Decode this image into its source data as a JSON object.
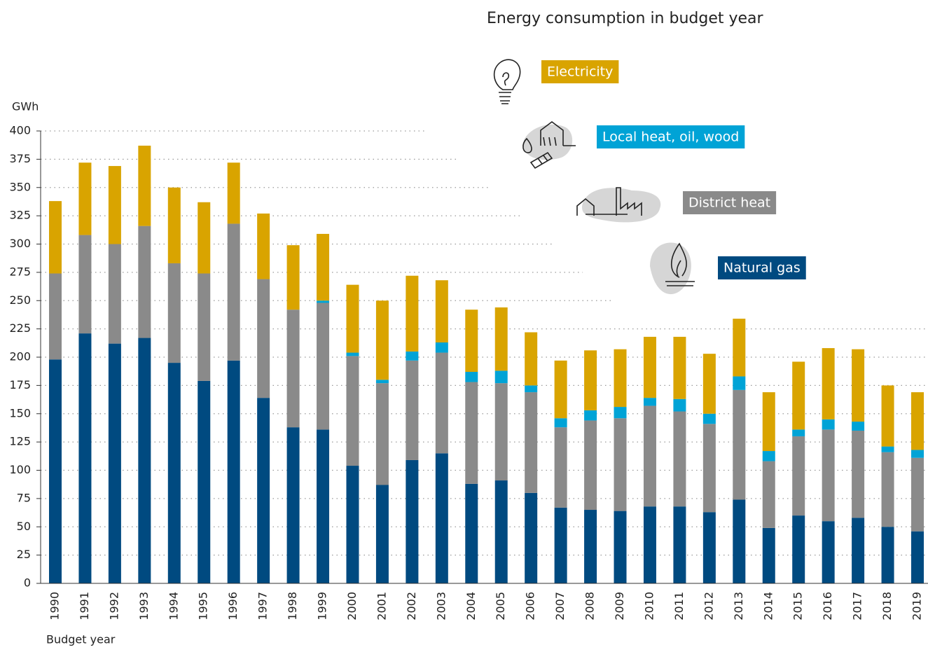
{
  "chart_data": {
    "type": "stacked_bar",
    "title": "Energy consumption in budget year",
    "y_label": "GWh",
    "x_label": "Budget year",
    "categories": [
      "1990",
      "1991",
      "1992",
      "1993",
      "1994",
      "1995",
      "1996",
      "1997",
      "1998",
      "1999",
      "2000",
      "2001",
      "2002",
      "2003",
      "2004",
      "2005",
      "2006",
      "2007",
      "2008",
      "2009",
      "2010",
      "2011",
      "2012",
      "2013",
      "2014",
      "2015",
      "2016",
      "2017",
      "2018",
      "2019"
    ],
    "series": [
      {
        "name": "Natural gas",
        "color": "#004a80",
        "values": [
          198,
          221,
          212,
          217,
          195,
          179,
          197,
          164,
          138,
          136,
          104,
          87,
          109,
          115,
          88,
          91,
          80,
          67,
          65,
          64,
          68,
          68,
          63,
          74,
          49,
          60,
          55,
          58,
          50,
          46
        ]
      },
      {
        "name": "District heat",
        "color": "#8a8a8a",
        "values": [
          76,
          87,
          88,
          99,
          88,
          95,
          121,
          105,
          104,
          112,
          97,
          90,
          88,
          89,
          90,
          86,
          89,
          71,
          79,
          82,
          89,
          84,
          78,
          97,
          59,
          70,
          81,
          77,
          66,
          65
        ]
      },
      {
        "name": "Local heat, oil, wood",
        "color": "#00a3d6",
        "values": [
          0,
          0,
          0,
          0,
          0,
          0,
          0,
          0,
          0,
          2,
          3,
          3,
          8,
          9,
          9,
          11,
          6,
          8,
          9,
          10,
          7,
          11,
          9,
          12,
          9,
          6,
          9,
          8,
          5,
          7
        ]
      },
      {
        "name": "Electricity",
        "color": "#d9a400",
        "values": [
          64,
          64,
          69,
          71,
          67,
          63,
          54,
          58,
          57,
          59,
          60,
          70,
          67,
          55,
          55,
          56,
          47,
          51,
          53,
          51,
          54,
          55,
          53,
          51,
          52,
          60,
          63,
          64,
          54,
          51
        ]
      }
    ],
    "ylim": [
      0,
      400
    ],
    "yticks": [
      0,
      25,
      50,
      75,
      100,
      125,
      150,
      175,
      200,
      225,
      250,
      275,
      300,
      325,
      350,
      375,
      400
    ],
    "grid": true
  }
}
